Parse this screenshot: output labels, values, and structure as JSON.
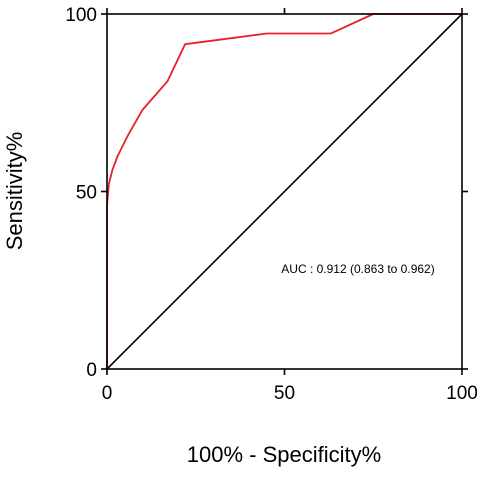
{
  "chart_data": {
    "type": "line",
    "xlabel": "100% - Specificity%",
    "ylabel": "Sensitivity%",
    "xlim": [
      0,
      100
    ],
    "ylim": [
      0,
      100
    ],
    "x_ticks": [
      0,
      50,
      100
    ],
    "y_ticks": [
      0,
      50,
      100
    ],
    "grid": false,
    "annotation": "AUC : 0.912 (0.863 to 0.962)",
    "series": [
      {
        "color": "#e8202a",
        "x": [
          0,
          0,
          0.5,
          1.5,
          3,
          6,
          10,
          17,
          22,
          45,
          63,
          75,
          100
        ],
        "y": [
          0,
          46,
          52,
          56,
          60,
          66,
          73,
          81,
          91.5,
          94.5,
          94.5,
          100,
          100
        ]
      }
    ],
    "reference_line": {
      "color": "#000000",
      "x": [
        0,
        100
      ],
      "y": [
        0,
        100
      ]
    }
  }
}
